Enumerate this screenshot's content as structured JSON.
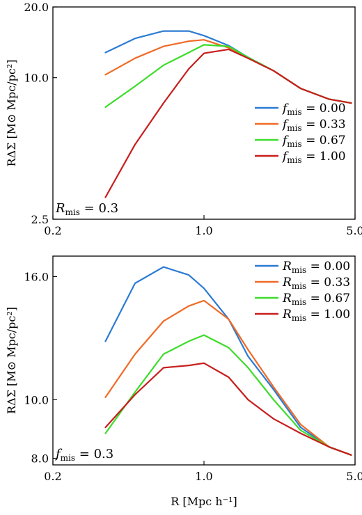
{
  "chart_data": [
    {
      "type": "line",
      "xscale": "log",
      "yscale": "log",
      "xlim": [
        0.2,
        5.0
      ],
      "ylim": [
        2.5,
        20.0
      ],
      "x_ticks": [
        "0.2",
        "1.0",
        "5.0"
      ],
      "y_ticks": [
        "2.5",
        "10.0",
        "20.0"
      ],
      "ylabel": "RΔΣ [M⊙ Mpc/pc²]",
      "xlabel": "",
      "annotation": "R_mis = 0.3",
      "legend_position": "bottom-right",
      "x": [
        0.35,
        0.48,
        0.65,
        0.85,
        1.0,
        1.3,
        1.6,
        2.1,
        2.8,
        3.8,
        4.8
      ],
      "series": [
        {
          "name": "f_mis = 0.00",
          "color": "#2b7bd4",
          "values": [
            12.8,
            14.7,
            15.8,
            15.8,
            15.1,
            13.7,
            12.2,
            10.7,
            9.0,
            8.1,
            7.8
          ]
        },
        {
          "name": "f_mis = 0.33",
          "color": "#f06a26",
          "values": [
            10.3,
            12.1,
            13.6,
            14.3,
            14.5,
            13.4,
            12.1,
            10.7,
            9.0,
            8.1,
            7.8
          ]
        },
        {
          "name": "f_mis = 0.67",
          "color": "#3ddc2a",
          "values": [
            7.5,
            9.2,
            11.3,
            12.8,
            13.8,
            13.6,
            12.2,
            10.7,
            9.0,
            8.1,
            7.8
          ]
        },
        {
          "name": "f_mis = 1.00",
          "color": "#c81e1e",
          "values": [
            3.1,
            5.2,
            7.8,
            10.9,
            12.7,
            13.2,
            12.1,
            10.7,
            9.0,
            8.1,
            7.8
          ]
        }
      ]
    },
    {
      "type": "line",
      "xscale": "log",
      "yscale": "log",
      "xlim": [
        0.2,
        5.0
      ],
      "ylim": [
        7.8,
        17.3
      ],
      "x_ticks": [
        "0.2",
        "1.0",
        "5.0"
      ],
      "y_ticks": [
        "8.0",
        "10.0",
        "16.0"
      ],
      "ylabel": "RΔΣ [M⊙ Mpc/pc²]",
      "xlabel": "R [Mpc h⁻¹]",
      "annotation": "f_mis = 0.3",
      "legend_position": "top-right",
      "x": [
        0.35,
        0.48,
        0.65,
        0.85,
        1.0,
        1.3,
        1.6,
        2.1,
        2.8,
        3.8,
        4.8
      ],
      "series": [
        {
          "name": "R_mis = 0.00",
          "color": "#2b7bd4",
          "values": [
            12.5,
            15.6,
            16.6,
            16.1,
            15.3,
            13.6,
            11.8,
            10.4,
            9.0,
            8.35,
            8.1
          ]
        },
        {
          "name": "R_mis = 0.33",
          "color": "#f06a26",
          "values": [
            10.1,
            11.9,
            13.5,
            14.3,
            14.6,
            13.6,
            12.1,
            10.5,
            9.1,
            8.35,
            8.1
          ]
        },
        {
          "name": "R_mis = 0.67",
          "color": "#3ddc2a",
          "values": [
            8.8,
            10.3,
            11.9,
            12.5,
            12.8,
            12.2,
            11.3,
            10.0,
            8.9,
            8.35,
            8.1
          ]
        },
        {
          "name": "R_mis = 1.00",
          "color": "#c81e1e",
          "values": [
            9.0,
            10.2,
            11.3,
            11.4,
            11.5,
            10.9,
            10.0,
            9.3,
            8.8,
            8.35,
            8.1
          ]
        }
      ]
    }
  ]
}
